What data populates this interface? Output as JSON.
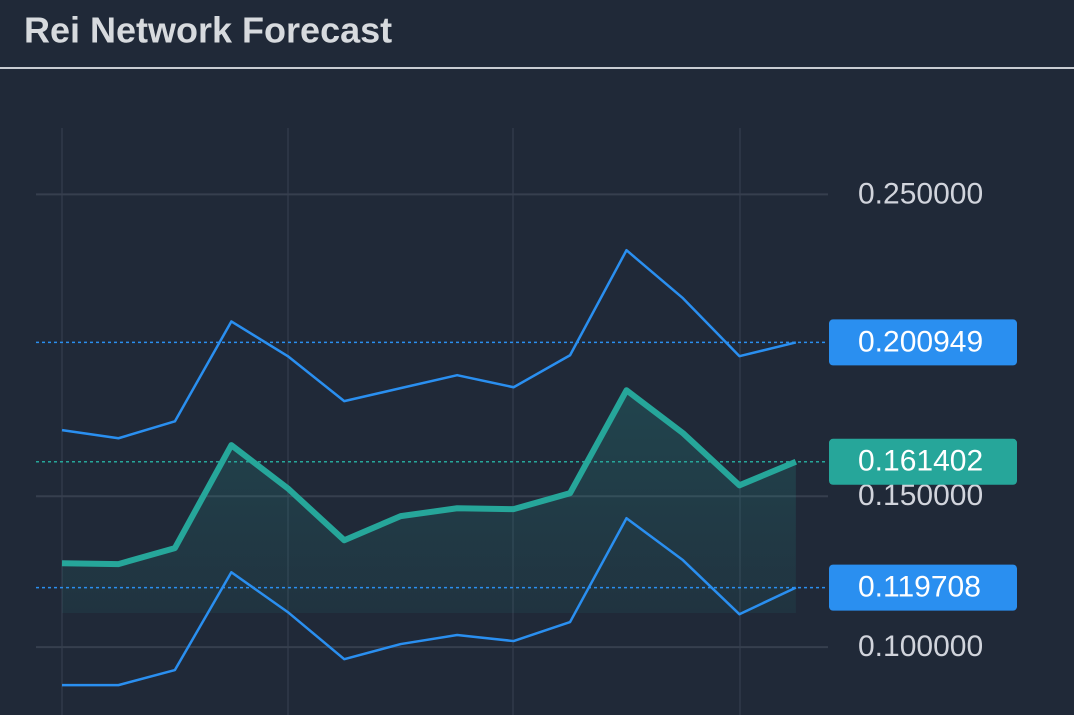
{
  "title": "Rei Network Forecast",
  "chart_data": {
    "type": "line",
    "categories": [
      null,
      null,
      null,
      null,
      null,
      null,
      null,
      null,
      null,
      null,
      null,
      null,
      null,
      null
    ],
    "series": [
      {
        "color": "#2a8ff0",
        "values": [
          0.1719,
          0.1692,
          0.1748,
          0.2079,
          0.1964,
          0.1815,
          0.1858,
          0.1901,
          0.1861,
          0.1967,
          0.2315,
          0.2156,
          0.1964,
          0.200949
        ]
      },
      {
        "color": "#26a69a",
        "values": [
          0.1278,
          0.1275,
          0.1328,
          0.1669,
          0.1526,
          0.1354,
          0.1434,
          0.146,
          0.1457,
          0.151,
          0.1851,
          0.1709,
          0.1536,
          0.161402
        ]
      },
      {
        "color": "#2a8ff0",
        "values": [
          0.0874,
          0.0874,
          0.0924,
          0.1248,
          0.1116,
          0.096,
          0.101,
          0.104,
          0.102,
          0.1083,
          0.1427,
          0.1288,
          0.1109,
          0.119708
        ]
      }
    ],
    "ylim": [
      0.0775,
      0.272
    ],
    "yticks": [
      {
        "value": 0.1,
        "label": "0.100000"
      },
      {
        "value": 0.15,
        "label": "0.150000"
      },
      {
        "value": 0.25,
        "label": "0.250000"
      }
    ],
    "grid": true
  }
}
